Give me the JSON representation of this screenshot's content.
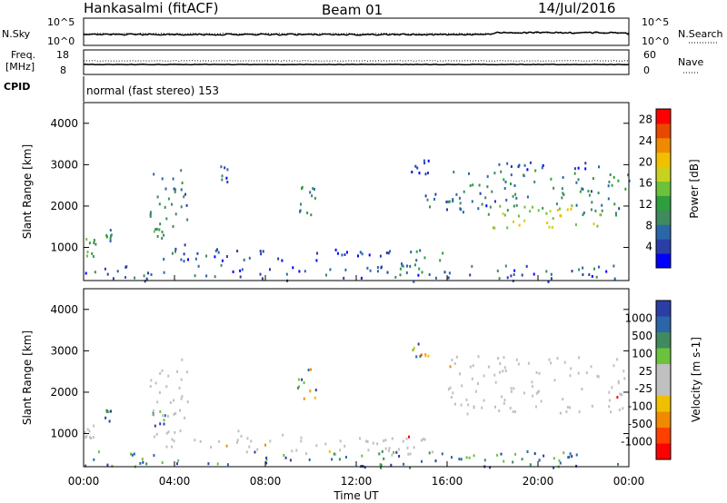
{
  "header": {
    "station": "Hankasalmi (fitACF)",
    "beam": "Beam 01",
    "date": "14/Jul/2016"
  },
  "params": {
    "nsky_label": "N.Sky",
    "nsearch_label": "N.Search",
    "nsky_top": "10^5",
    "nsky_bottom": "10^0",
    "nsearch_top": "10^5",
    "nsearch_bottom": "10^0",
    "freq_label_1": "Freq.",
    "freq_label_2": "[MHz]",
    "freq_ticks": [
      "18",
      "8"
    ],
    "nave_label": "Nave",
    "nave_ticks": [
      "60",
      "0"
    ],
    "cpid_label": "CPID",
    "cpid_value": "normal (fast stereo) 153"
  },
  "colors": {
    "power_scale": [
      "#0000ff",
      "#2a3ea6",
      "#2a66a8",
      "#3f8a5e",
      "#2f9e3f",
      "#6cc23a",
      "#c8d21e",
      "#f0c000",
      "#f08a00",
      "#e84800",
      "#ff0000"
    ],
    "velocity_scale": [
      "#2a3ea6",
      "#2a66a8",
      "#3f8a5e",
      "#6cc23a",
      "#c0c0c0",
      "#c0c0c0",
      "#f0c000",
      "#f08a00",
      "#ff4000",
      "#ff0000"
    ],
    "ground_scatter": "#c0c0c0"
  },
  "chart_data": [
    {
      "type": "heatmap",
      "name": "power",
      "ylabel": "Slant Range [km]",
      "xlabel": "Time UT",
      "xlim_hours": [
        0,
        24
      ],
      "ylim_km": [
        200,
        4500
      ],
      "x_ticks": [
        "00:00",
        "04:00",
        "08:00",
        "12:00",
        "16:00",
        "20:00",
        "00:00"
      ],
      "y_ticks": [
        1000,
        2000,
        3000,
        4000
      ],
      "colorbar": {
        "label": "Power [dB]",
        "ticks": [
          4,
          8,
          12,
          16,
          20,
          24,
          28
        ],
        "range": [
          0,
          30
        ]
      },
      "regions": [
        {
          "t": [
            0.0,
            0.5
          ],
          "r": [
            700,
            1300
          ],
          "level": 12
        },
        {
          "t": [
            0.9,
            1.2
          ],
          "r": [
            1100,
            1600
          ],
          "level": 10
        },
        {
          "t": [
            2.9,
            4.6
          ],
          "r": [
            1400,
            2900
          ],
          "level": 9
        },
        {
          "t": [
            3.0,
            3.6
          ],
          "r": [
            1200,
            1600
          ],
          "level": 10
        },
        {
          "t": [
            3.0,
            7.0
          ],
          "r": [
            700,
            1100
          ],
          "level": 5
        },
        {
          "t": [
            5.9,
            6.3
          ],
          "r": [
            2600,
            3000
          ],
          "level": 6
        },
        {
          "t": [
            9.3,
            10.2
          ],
          "r": [
            1800,
            2600
          ],
          "level": 9
        },
        {
          "t": [
            7.0,
            13.5
          ],
          "r": [
            700,
            1000
          ],
          "level": 4
        },
        {
          "t": [
            13.8,
            15.8
          ],
          "r": [
            500,
            1000
          ],
          "level": 10
        },
        {
          "t": [
            14.4,
            15.2
          ],
          "r": [
            2800,
            3200
          ],
          "level": 5
        },
        {
          "t": [
            15.0,
            18.2
          ],
          "r": [
            1900,
            2400
          ],
          "level": 6
        },
        {
          "t": [
            16.0,
            24.0
          ],
          "r": [
            1800,
            2900
          ],
          "level": 9
        },
        {
          "t": [
            18.0,
            23.0
          ],
          "r": [
            1500,
            2100
          ],
          "level": 18
        },
        {
          "t": [
            18.0,
            23.5
          ],
          "r": [
            2900,
            3100
          ],
          "level": 4
        },
        {
          "t": [
            0.0,
            24.0
          ],
          "r": [
            200,
            600
          ],
          "level": 6
        }
      ]
    },
    {
      "type": "heatmap",
      "name": "velocity",
      "ylabel": "Slant Range [km]",
      "xlabel": "Time UT",
      "xlim_hours": [
        0,
        24
      ],
      "ylim_km": [
        200,
        4500
      ],
      "x_ticks": [
        "00:00",
        "04:00",
        "08:00",
        "12:00",
        "16:00",
        "20:00",
        "00:00"
      ],
      "y_ticks": [
        1000,
        2000,
        3000,
        4000
      ],
      "colorbar": {
        "label": "Velocity [m s-1]",
        "ticks": [
          1000,
          500,
          100,
          25,
          -25,
          -100,
          -500,
          -1000
        ]
      },
      "regions": [
        {
          "t": [
            0.0,
            0.5
          ],
          "r": [
            700,
            1300
          ],
          "kind": "ground"
        },
        {
          "t": [
            0.9,
            1.2
          ],
          "r": [
            1200,
            1600
          ],
          "kind": "positive"
        },
        {
          "t": [
            2.9,
            4.6
          ],
          "r": [
            1400,
            2900
          ],
          "kind": "ground"
        },
        {
          "t": [
            3.0,
            3.6
          ],
          "r": [
            1200,
            1600
          ],
          "kind": "positive"
        },
        {
          "t": [
            3.0,
            7.5
          ],
          "r": [
            700,
            1100
          ],
          "kind": "ground"
        },
        {
          "t": [
            9.3,
            10.2
          ],
          "r": [
            1800,
            2600
          ],
          "kind": "mixed"
        },
        {
          "t": [
            7.0,
            15.8
          ],
          "r": [
            500,
            1000
          ],
          "kind": "ground"
        },
        {
          "t": [
            14.4,
            15.2
          ],
          "r": [
            2800,
            3200
          ],
          "kind": "mixed"
        },
        {
          "t": [
            16.0,
            24.0
          ],
          "r": [
            1500,
            2900
          ],
          "kind": "ground"
        },
        {
          "t": [
            0.0,
            24.0
          ],
          "r": [
            200,
            600
          ],
          "kind": "positive"
        }
      ]
    }
  ]
}
